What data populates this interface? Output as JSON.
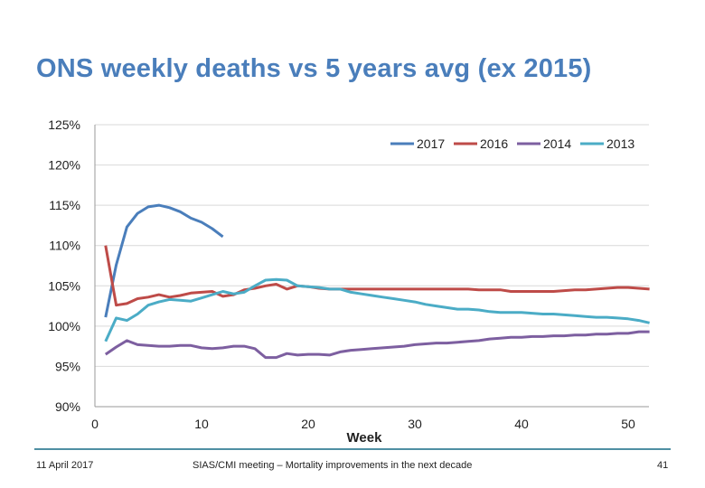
{
  "slide": {
    "title": "ONS weekly deaths vs 5 years avg (ex 2015)",
    "footer_date": "11 April 2017",
    "footer_text": "SIAS/CMI meeting – Mortality improvements in the next decade",
    "page_number": "41",
    "colors": {
      "title": "#4a7ebb",
      "rule": "#4f8fa3"
    }
  },
  "chart_data": {
    "type": "line",
    "title": "",
    "xlabel": "Week",
    "ylabel": "",
    "xlim": [
      0,
      52
    ],
    "ylim": [
      90,
      125
    ],
    "xticks": [
      0,
      10,
      20,
      30,
      40,
      50
    ],
    "yticks": [
      90,
      95,
      100,
      105,
      110,
      115,
      120,
      125
    ],
    "ytick_labels": [
      "90%",
      "95%",
      "100%",
      "105%",
      "110%",
      "115%",
      "120%",
      "125%"
    ],
    "grid": "horizontal",
    "legend": "top-right",
    "series": [
      {
        "name": "2017",
        "color": "#4a7ebb",
        "x": [
          1,
          2,
          3,
          4,
          5,
          6,
          7,
          8,
          9,
          10,
          11,
          12
        ],
        "values": [
          101.1,
          107.6,
          112.3,
          114.0,
          114.8,
          115.0,
          114.7,
          114.2,
          113.4,
          112.9,
          112.1,
          111.1
        ]
      },
      {
        "name": "2016",
        "color": "#be4b48",
        "x": [
          1,
          2,
          3,
          4,
          5,
          6,
          7,
          8,
          9,
          10,
          11,
          12,
          13,
          14,
          15,
          16,
          17,
          18,
          19,
          20,
          21,
          22,
          23,
          24,
          25,
          26,
          27,
          28,
          29,
          30,
          31,
          32,
          33,
          34,
          35,
          36,
          37,
          38,
          39,
          40,
          41,
          42,
          43,
          44,
          45,
          46,
          47,
          48,
          49,
          50,
          51,
          52
        ],
        "values": [
          110.0,
          102.6,
          102.8,
          103.4,
          103.6,
          103.9,
          103.6,
          103.8,
          104.1,
          104.2,
          104.3,
          103.7,
          103.9,
          104.5,
          104.7,
          105.0,
          105.2,
          104.6,
          105.0,
          104.9,
          104.7,
          104.6,
          104.6,
          104.6,
          104.6,
          104.6,
          104.6,
          104.6,
          104.6,
          104.6,
          104.6,
          104.6,
          104.6,
          104.6,
          104.6,
          104.5,
          104.5,
          104.5,
          104.3,
          104.3,
          104.3,
          104.3,
          104.3,
          104.4,
          104.5,
          104.5,
          104.6,
          104.7,
          104.8,
          104.8,
          104.7,
          104.6
        ]
      },
      {
        "name": "2014",
        "color": "#7d5fa0",
        "x": [
          1,
          2,
          3,
          4,
          5,
          6,
          7,
          8,
          9,
          10,
          11,
          12,
          13,
          14,
          15,
          16,
          17,
          18,
          19,
          20,
          21,
          22,
          23,
          24,
          25,
          26,
          27,
          28,
          29,
          30,
          31,
          32,
          33,
          34,
          35,
          36,
          37,
          38,
          39,
          40,
          41,
          42,
          43,
          44,
          45,
          46,
          47,
          48,
          49,
          50,
          51,
          52
        ],
        "values": [
          96.5,
          97.4,
          98.2,
          97.7,
          97.6,
          97.5,
          97.5,
          97.6,
          97.6,
          97.3,
          97.2,
          97.3,
          97.5,
          97.5,
          97.2,
          96.1,
          96.1,
          96.6,
          96.4,
          96.5,
          96.5,
          96.4,
          96.8,
          97.0,
          97.1,
          97.2,
          97.3,
          97.4,
          97.5,
          97.7,
          97.8,
          97.9,
          97.9,
          98.0,
          98.1,
          98.2,
          98.4,
          98.5,
          98.6,
          98.6,
          98.7,
          98.7,
          98.8,
          98.8,
          98.9,
          98.9,
          99.0,
          99.0,
          99.1,
          99.1,
          99.3,
          99.3
        ]
      },
      {
        "name": "2013",
        "color": "#4bacc6",
        "x": [
          1,
          2,
          3,
          4,
          5,
          6,
          7,
          8,
          9,
          10,
          11,
          12,
          13,
          14,
          15,
          16,
          17,
          18,
          19,
          20,
          21,
          22,
          23,
          24,
          25,
          26,
          27,
          28,
          29,
          30,
          31,
          32,
          33,
          34,
          35,
          36,
          37,
          38,
          39,
          40,
          41,
          42,
          43,
          44,
          45,
          46,
          47,
          48,
          49,
          50,
          51,
          52
        ],
        "values": [
          98.1,
          101.0,
          100.7,
          101.5,
          102.6,
          103.0,
          103.3,
          103.2,
          103.1,
          103.5,
          103.9,
          104.3,
          104.0,
          104.2,
          105.0,
          105.7,
          105.8,
          105.7,
          105.0,
          104.9,
          104.8,
          104.6,
          104.6,
          104.2,
          104.0,
          103.8,
          103.6,
          103.4,
          103.2,
          103.0,
          102.7,
          102.5,
          102.3,
          102.1,
          102.1,
          102.0,
          101.8,
          101.7,
          101.7,
          101.7,
          101.6,
          101.5,
          101.5,
          101.4,
          101.3,
          101.2,
          101.1,
          101.1,
          101.0,
          100.9,
          100.7,
          100.4
        ]
      }
    ]
  }
}
